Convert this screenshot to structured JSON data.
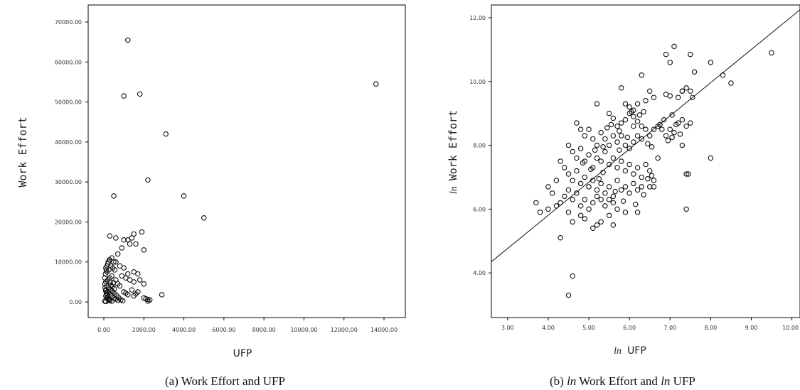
{
  "chart_data": [
    {
      "type": "scatter",
      "title": "",
      "caption": "(a) Work Effort and UFP",
      "xlabel": "UFP",
      "ylabel": "Work Effort",
      "xlim": [
        0,
        14000
      ],
      "ylim": [
        0,
        70000
      ],
      "x_ticks": [
        "0.00",
        "2000.00",
        "4000.00",
        "6000.00",
        "8000.00",
        "10000.00",
        "12000.00",
        "14000.00"
      ],
      "y_ticks": [
        "0.00",
        "10000.00",
        "20000.00",
        "30000.00",
        "40000.00",
        "50000.00",
        "60000.00",
        "70000.00"
      ],
      "points": [
        [
          1200,
          65500
        ],
        [
          13600,
          54500
        ],
        [
          1800,
          52000
        ],
        [
          1000,
          51500
        ],
        [
          3100,
          42000
        ],
        [
          2200,
          30500
        ],
        [
          4000,
          26500
        ],
        [
          500,
          26500
        ],
        [
          5000,
          21000
        ],
        [
          1900,
          17500
        ],
        [
          1500,
          17000
        ],
        [
          1400,
          16000
        ],
        [
          1000,
          15500
        ],
        [
          1200,
          15500
        ],
        [
          300,
          16500
        ],
        [
          600,
          16000
        ],
        [
          2000,
          13000
        ],
        [
          1300,
          14500
        ],
        [
          900,
          13500
        ],
        [
          1600,
          14500
        ],
        [
          700,
          12000
        ],
        [
          400,
          11000
        ],
        [
          300,
          10500
        ],
        [
          200,
          9500
        ],
        [
          100,
          8500
        ],
        [
          500,
          10000
        ],
        [
          600,
          10000
        ],
        [
          350,
          9000
        ],
        [
          250,
          8000
        ],
        [
          150,
          7500
        ],
        [
          450,
          8500
        ],
        [
          550,
          8000
        ],
        [
          800,
          9000
        ],
        [
          1000,
          8500
        ],
        [
          1500,
          7500
        ],
        [
          1700,
          7000
        ],
        [
          1200,
          7000
        ],
        [
          900,
          6500
        ],
        [
          1100,
          6000
        ],
        [
          1300,
          5500
        ],
        [
          1500,
          5000
        ],
        [
          1800,
          5500
        ],
        [
          2000,
          4500
        ],
        [
          600,
          5500
        ],
        [
          700,
          4500
        ],
        [
          800,
          4000
        ],
        [
          400,
          6500
        ],
        [
          300,
          6000
        ],
        [
          200,
          5500
        ],
        [
          100,
          5000
        ],
        [
          50,
          4500
        ],
        [
          150,
          4000
        ],
        [
          250,
          3500
        ],
        [
          350,
          3000
        ],
        [
          450,
          2500
        ],
        [
          550,
          2000
        ],
        [
          650,
          1500
        ],
        [
          750,
          1000
        ],
        [
          850,
          500
        ],
        [
          950,
          300
        ],
        [
          100,
          3000
        ],
        [
          200,
          2500
        ],
        [
          300,
          2000
        ],
        [
          400,
          1500
        ],
        [
          500,
          1000
        ],
        [
          600,
          700
        ],
        [
          700,
          400
        ],
        [
          100,
          1500
        ],
        [
          150,
          1000
        ],
        [
          200,
          700
        ],
        [
          250,
          400
        ],
        [
          50,
          200
        ],
        [
          100,
          100
        ],
        [
          300,
          300
        ],
        [
          400,
          200
        ],
        [
          2000,
          1000
        ],
        [
          2100,
          800
        ],
        [
          2200,
          600
        ],
        [
          2900,
          1800
        ],
        [
          1500,
          1500
        ],
        [
          1600,
          2000
        ],
        [
          1700,
          2500
        ],
        [
          1400,
          3000
        ],
        [
          2200,
          200
        ],
        [
          2300,
          500
        ],
        [
          1000,
          2500
        ],
        [
          1100,
          2200
        ],
        [
          1200,
          1800
        ],
        [
          50,
          6000
        ],
        [
          80,
          7000
        ],
        [
          120,
          8000
        ],
        [
          160,
          9000
        ],
        [
          220,
          10000
        ],
        [
          280,
          10500
        ],
        [
          60,
          3500
        ],
        [
          90,
          2800
        ],
        [
          130,
          2200
        ],
        [
          170,
          1700
        ],
        [
          210,
          1300
        ],
        [
          240,
          900
        ],
        [
          270,
          600
        ],
        [
          320,
          5000
        ],
        [
          360,
          4200
        ],
        [
          420,
          3800
        ],
        [
          480,
          4800
        ],
        [
          520,
          3300
        ]
      ]
    },
    {
      "type": "scatter",
      "caption_prefix": "(b) ",
      "caption_ln": "ln",
      "caption_mid": " Work Effort and ",
      "caption_tail": " UFP",
      "xlabel_ln": "ln",
      "xlabel_text": "UFP",
      "ylabel_ln": "ln",
      "ylabel_text": "Work Effort",
      "xlim": [
        2.6,
        10.2
      ],
      "ylim": [
        2.6,
        12.4
      ],
      "x_ticks": [
        "3.00",
        "4.00",
        "5.00",
        "6.00",
        "7.00",
        "8.00",
        "9.00",
        "10.00"
      ],
      "y_ticks": [
        "4.00",
        "6.00",
        "8.00",
        "10.00",
        "12.00"
      ],
      "fit_line": {
        "x": [
          2.6,
          10.2
        ],
        "y": [
          4.35,
          12.25
        ]
      },
      "points": [
        [
          7.1,
          11.1
        ],
        [
          7.5,
          10.85
        ],
        [
          6.9,
          10.85
        ],
        [
          9.5,
          10.9
        ],
        [
          7.0,
          10.6
        ],
        [
          7.3,
          9.7
        ],
        [
          7.6,
          10.3
        ],
        [
          8.0,
          10.6
        ],
        [
          8.3,
          10.2
        ],
        [
          8.5,
          9.95
        ],
        [
          6.3,
          10.2
        ],
        [
          6.5,
          9.7
        ],
        [
          5.8,
          9.8
        ],
        [
          6.6,
          9.5
        ],
        [
          6.9,
          9.6
        ],
        [
          7.0,
          9.55
        ],
        [
          7.2,
          9.5
        ],
        [
          7.3,
          9.7
        ],
        [
          7.4,
          9.8
        ],
        [
          7.5,
          9.7
        ],
        [
          7.55,
          9.5
        ],
        [
          5.9,
          9.3
        ],
        [
          6.0,
          9.2
        ],
        [
          6.1,
          9.1
        ],
        [
          6.2,
          9.3
        ],
        [
          6.4,
          9.4
        ],
        [
          5.2,
          9.3
        ],
        [
          5.5,
          9.0
        ],
        [
          5.6,
          8.85
        ],
        [
          5.7,
          8.6
        ],
        [
          5.8,
          8.7
        ],
        [
          5.9,
          8.8
        ],
        [
          6.0,
          9.0
        ],
        [
          6.1,
          8.9
        ],
        [
          6.2,
          8.75
        ],
        [
          6.3,
          8.6
        ],
        [
          6.4,
          8.5
        ],
        [
          6.5,
          8.3
        ],
        [
          6.6,
          8.5
        ],
        [
          6.7,
          8.6
        ],
        [
          6.8,
          8.5
        ],
        [
          6.9,
          8.3
        ],
        [
          7.0,
          8.5
        ],
        [
          7.1,
          8.4
        ],
        [
          7.2,
          8.7
        ],
        [
          7.3,
          8.8
        ],
        [
          7.4,
          8.6
        ],
        [
          7.5,
          8.7
        ],
        [
          4.7,
          8.7
        ],
        [
          4.8,
          8.5
        ],
        [
          4.9,
          8.3
        ],
        [
          5.0,
          8.5
        ],
        [
          5.1,
          8.2
        ],
        [
          5.2,
          8.0
        ],
        [
          5.3,
          8.4
        ],
        [
          5.4,
          8.2
        ],
        [
          5.5,
          8.0
        ],
        [
          5.6,
          8.3
        ],
        [
          5.7,
          8.1
        ],
        [
          5.8,
          8.3
        ],
        [
          5.9,
          8.0
        ],
        [
          6.0,
          7.9
        ],
        [
          6.1,
          8.1
        ],
        [
          6.2,
          8.3
        ],
        [
          6.3,
          8.2
        ],
        [
          4.5,
          8.0
        ],
        [
          4.6,
          7.8
        ],
        [
          4.7,
          7.6
        ],
        [
          4.8,
          7.9
        ],
        [
          4.9,
          7.5
        ],
        [
          5.0,
          7.7
        ],
        [
          5.1,
          7.3
        ],
        [
          5.2,
          7.6
        ],
        [
          5.3,
          7.5
        ],
        [
          5.4,
          7.8
        ],
        [
          5.5,
          7.4
        ],
        [
          5.6,
          7.6
        ],
        [
          5.7,
          7.3
        ],
        [
          5.8,
          7.5
        ],
        [
          5.9,
          7.2
        ],
        [
          6.0,
          7.4
        ],
        [
          6.1,
          7.1
        ],
        [
          6.2,
          7.3
        ],
        [
          6.3,
          7.0
        ],
        [
          6.4,
          7.4
        ],
        [
          6.5,
          7.2
        ],
        [
          6.6,
          6.9
        ],
        [
          6.7,
          7.6
        ],
        [
          7.3,
          8.0
        ],
        [
          7.4,
          7.1
        ],
        [
          7.45,
          7.1
        ],
        [
          8.0,
          7.6
        ],
        [
          4.3,
          7.5
        ],
        [
          4.4,
          7.3
        ],
        [
          4.5,
          7.1
        ],
        [
          4.6,
          6.9
        ],
        [
          4.7,
          7.2
        ],
        [
          4.8,
          6.8
        ],
        [
          4.9,
          7.0
        ],
        [
          5.0,
          6.7
        ],
        [
          5.1,
          6.9
        ],
        [
          5.2,
          6.6
        ],
        [
          5.3,
          6.8
        ],
        [
          5.4,
          6.5
        ],
        [
          5.5,
          6.7
        ],
        [
          5.6,
          6.4
        ],
        [
          5.7,
          6.9
        ],
        [
          5.8,
          6.6
        ],
        [
          5.9,
          6.7
        ],
        [
          6.0,
          6.5
        ],
        [
          6.1,
          6.8
        ],
        [
          6.2,
          6.6
        ],
        [
          6.3,
          6.7
        ],
        [
          6.5,
          6.7
        ],
        [
          6.6,
          6.7
        ],
        [
          4.0,
          6.7
        ],
        [
          4.1,
          6.5
        ],
        [
          4.2,
          6.9
        ],
        [
          4.3,
          6.2
        ],
        [
          4.4,
          6.4
        ],
        [
          4.5,
          6.6
        ],
        [
          4.6,
          6.3
        ],
        [
          4.7,
          6.5
        ],
        [
          4.8,
          6.1
        ],
        [
          4.9,
          6.3
        ],
        [
          5.0,
          6.0
        ],
        [
          5.1,
          6.2
        ],
        [
          5.2,
          6.4
        ],
        [
          5.3,
          6.3
        ],
        [
          5.4,
          6.1
        ],
        [
          5.5,
          6.3
        ],
        [
          5.6,
          6.2
        ],
        [
          5.7,
          6.0
        ],
        [
          5.9,
          5.9
        ],
        [
          6.2,
          5.9
        ],
        [
          3.7,
          6.2
        ],
        [
          3.8,
          5.9
        ],
        [
          4.0,
          6.0
        ],
        [
          4.2,
          6.1
        ],
        [
          4.5,
          5.9
        ],
        [
          4.6,
          5.6
        ],
        [
          4.8,
          5.8
        ],
        [
          4.9,
          5.7
        ],
        [
          5.1,
          5.4
        ],
        [
          5.3,
          5.6
        ],
        [
          5.5,
          5.8
        ],
        [
          5.6,
          5.5
        ],
        [
          5.2,
          5.5
        ],
        [
          4.3,
          5.1
        ],
        [
          7.4,
          6.0
        ],
        [
          4.6,
          3.9
        ],
        [
          4.5,
          3.3
        ],
        [
          6.1,
          8.6
        ],
        [
          5.95,
          8.25
        ],
        [
          6.05,
          9.05
        ],
        [
          5.35,
          7.95
        ],
        [
          4.85,
          7.45
        ],
        [
          5.75,
          7.85
        ],
        [
          6.45,
          8.05
        ],
        [
          6.55,
          7.95
        ],
        [
          6.75,
          8.65
        ],
        [
          6.85,
          8.8
        ],
        [
          7.05,
          8.95
        ],
        [
          7.15,
          8.65
        ],
        [
          5.45,
          8.55
        ],
        [
          5.15,
          7.85
        ],
        [
          5.05,
          7.25
        ],
        [
          5.25,
          6.95
        ],
        [
          5.35,
          7.15
        ],
        [
          5.65,
          6.55
        ],
        [
          5.85,
          6.25
        ],
        [
          6.15,
          6.15
        ],
        [
          6.35,
          6.45
        ],
        [
          6.45,
          6.95
        ],
        [
          6.55,
          7.05
        ],
        [
          5.75,
          8.45
        ],
        [
          5.55,
          8.65
        ],
        [
          6.25,
          8.95
        ],
        [
          6.35,
          9.05
        ],
        [
          6.95,
          8.15
        ],
        [
          7.05,
          8.25
        ],
        [
          7.25,
          8.35
        ]
      ]
    }
  ]
}
